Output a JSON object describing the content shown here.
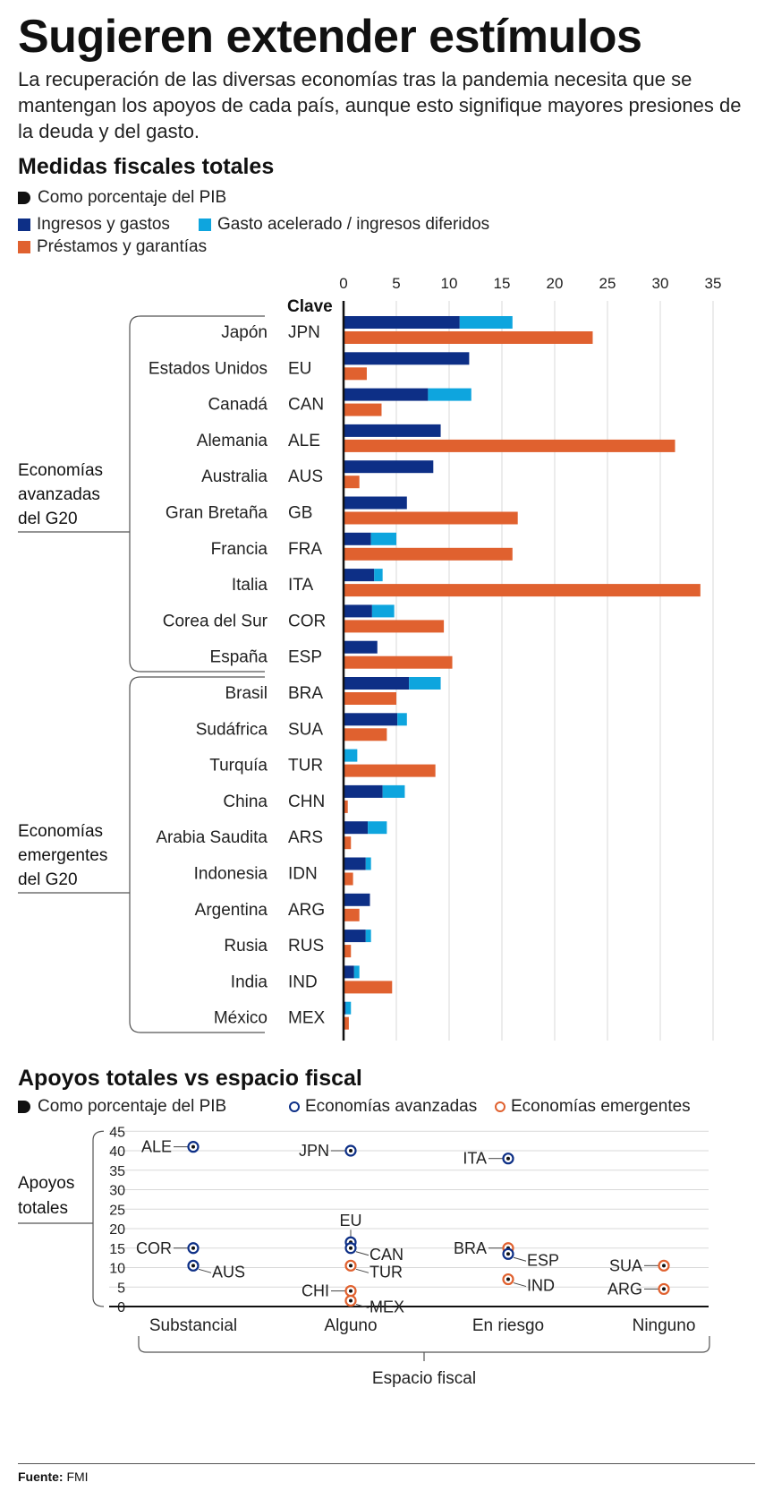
{
  "title": "Sugieren extender estímulos",
  "subtitle": "La recuperación de las diversas economías tras la pandemia necesita que se mantengan los apoyos de cada país, aunque esto signifique mayores presiones de la deuda y del gasto.",
  "colors": {
    "navy": "#0d2f86",
    "cyan": "#0ea5de",
    "orange": "#e0612f",
    "grid": "#d9d9d9",
    "text": "#222222"
  },
  "section1": {
    "title": "Medidas fiscales totales",
    "unit": "Como porcentaje del PIB",
    "legend": {
      "series1": "Ingresos y gastos",
      "series2": "Gasto acelerado / ingresos diferidos",
      "series3": "Préstamos y garantías"
    }
  },
  "section2": {
    "title": "Apoyos totales vs espacio fiscal",
    "unit": "Como porcentaje del PIB",
    "legend": {
      "advanced": "Economías avanzadas",
      "emerging": "Economías emergentes"
    }
  },
  "source": {
    "label": "Fuente:",
    "value": "FMI"
  },
  "chart_data": [
    {
      "type": "bar",
      "orientation": "horizontal",
      "title": "Medidas fiscales totales",
      "unit": "Como porcentaje del PIB",
      "key_header": "Clave",
      "xlim": [
        0,
        35
      ],
      "xticks": [
        0,
        5,
        10,
        15,
        20,
        25,
        30,
        35
      ],
      "groups": [
        {
          "label": "Economías avanzadas del G20",
          "from": 0,
          "to": 9
        },
        {
          "label": "Economías emergentes del G20",
          "from": 10,
          "to": 19
        }
      ],
      "categories": [
        "Japón",
        "Estados Unidos",
        "Canadá",
        "Alemania",
        "Australia",
        "Gran Bretaña",
        "Francia",
        "Italia",
        "Corea del Sur",
        "España",
        "Brasil",
        "Sudáfrica",
        "Turquía",
        "China",
        "Arabia Saudita",
        "Indonesia",
        "Argentina",
        "Rusia",
        "India",
        "México"
      ],
      "codes": [
        "JPN",
        "EU",
        "CAN",
        "ALE",
        "AUS",
        "GB",
        "FRA",
        "ITA",
        "COR",
        "ESP",
        "BRA",
        "SUA",
        "TUR",
        "CHN",
        "ARS",
        "IDN",
        "ARG",
        "RUS",
        "IND",
        "MEX"
      ],
      "series": [
        {
          "name": "Ingresos y gastos",
          "stack": "top",
          "values": [
            11.0,
            11.9,
            8.0,
            9.2,
            8.5,
            6.0,
            2.6,
            2.9,
            2.7,
            3.2,
            6.2,
            5.1,
            0.0,
            3.7,
            2.3,
            2.1,
            2.5,
            2.1,
            1.0,
            0.2
          ]
        },
        {
          "name": "Gasto acelerado / ingresos diferidos",
          "stack": "top",
          "values": [
            5.0,
            0.0,
            4.1,
            0.0,
            0.0,
            0.0,
            2.4,
            0.8,
            2.1,
            0.0,
            3.0,
            0.9,
            1.3,
            2.1,
            1.8,
            0.5,
            0.0,
            0.5,
            0.5,
            0.5
          ]
        },
        {
          "name": "Préstamos y garantías",
          "stack": "bottom",
          "values": [
            23.6,
            2.2,
            3.6,
            31.4,
            1.5,
            16.5,
            16.0,
            33.8,
            9.5,
            10.3,
            5.0,
            4.1,
            8.7,
            0.4,
            0.7,
            0.9,
            1.5,
            0.7,
            4.6,
            0.5
          ]
        }
      ]
    },
    {
      "type": "scatter",
      "title": "Apoyos totales vs espacio fiscal",
      "unit": "Como porcentaje del PIB",
      "ylabel_lines": [
        "Apoyos",
        "totales"
      ],
      "xlabel": "Espacio fiscal",
      "x_categories": [
        "Substancial",
        "Alguno",
        "En riesgo",
        "Ninguno"
      ],
      "ylim": [
        0,
        45
      ],
      "yticks": [
        0,
        5,
        10,
        15,
        20,
        25,
        30,
        35,
        40,
        45
      ],
      "points": [
        {
          "label": "ALE",
          "group": "advanced",
          "x": 0,
          "y": 41
        },
        {
          "label": "COR",
          "group": "advanced",
          "x": 0,
          "y": 15
        },
        {
          "label": "AUS",
          "group": "advanced",
          "x": 0,
          "y": 10.5
        },
        {
          "label": "JPN",
          "group": "advanced",
          "x": 1,
          "y": 40
        },
        {
          "label": "EU",
          "group": "advanced",
          "x": 1,
          "y": 16.5
        },
        {
          "label": "CAN",
          "group": "advanced",
          "x": 1,
          "y": 15
        },
        {
          "label": "TUR",
          "group": "emerging",
          "x": 1,
          "y": 10.5
        },
        {
          "label": "CHI",
          "group": "emerging",
          "x": 1,
          "y": 4
        },
        {
          "label": "MEX",
          "group": "emerging",
          "x": 1,
          "y": 1.5
        },
        {
          "label": "ITA",
          "group": "advanced",
          "x": 2,
          "y": 38
        },
        {
          "label": "BRA",
          "group": "emerging",
          "x": 2,
          "y": 15
        },
        {
          "label": "ESP",
          "group": "advanced",
          "x": 2,
          "y": 13.5
        },
        {
          "label": "IND",
          "group": "emerging",
          "x": 2,
          "y": 7
        },
        {
          "label": "SUA",
          "group": "emerging",
          "x": 3,
          "y": 10.5
        },
        {
          "label": "ARG",
          "group": "emerging",
          "x": 3,
          "y": 4.5
        }
      ]
    }
  ]
}
